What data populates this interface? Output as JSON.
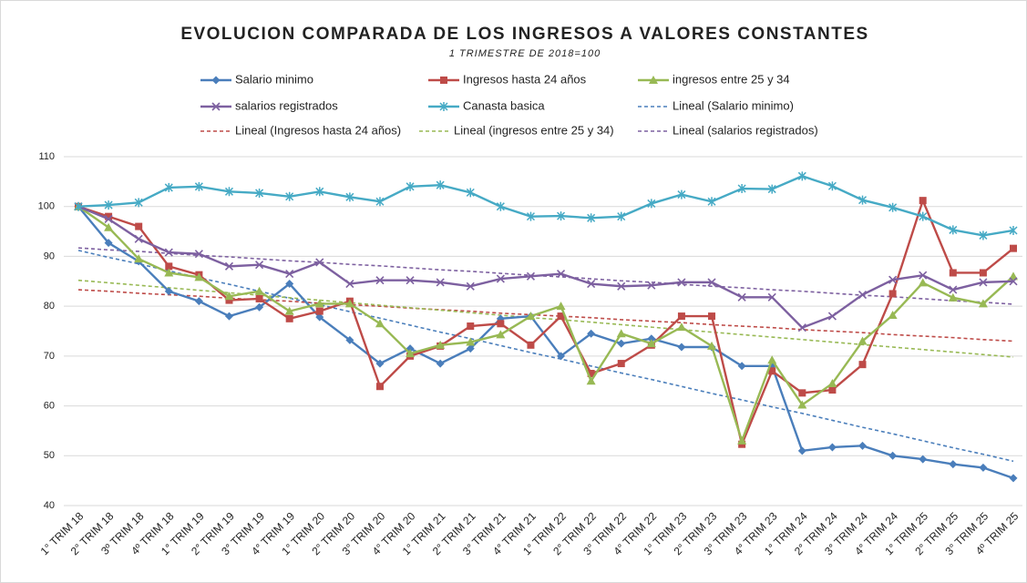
{
  "chart_data": {
    "type": "line",
    "title": "EVOLUCION COMPARADA DE LOS INGRESOS A VALORES CONSTANTES",
    "subtitle": "1 TRIMESTRE DE 2018=100",
    "categories": [
      "1° TRIM 18",
      "2° TRIM 18",
      "3º TRIM 18",
      "4º TRIM 18",
      "1° TRIM 19",
      "2° TRIM 19",
      "3° TRIM 19",
      "4° TRIM 19",
      "1° TRIM 20",
      "2° TRIM 20",
      "3° TRIM 20",
      "4° TRIM 20",
      "1° TRIM 21",
      "2° TRIM 21",
      "3° TRIM 21",
      "4° TRIM 21",
      "1° TRIM 22",
      "2° TRIM 22",
      "3° TRIM 22",
      "4° TRIM 22",
      "1° TRIM 23",
      "2° TRIM 23",
      "3° TRIM 23",
      "4° TRIM 23",
      "1° TRIM 24",
      "2° TRIM 24",
      "3° TRIM 24",
      "4° TRIM 24",
      "1° TRIM 25",
      "2° TRIM 25",
      "3° TRIM 25",
      "4º TRIM 25"
    ],
    "ylim": [
      40,
      110
    ],
    "yticks": [
      40,
      50,
      60,
      70,
      80,
      90,
      100,
      110
    ],
    "grid": true,
    "series": [
      {
        "name": "Salario minimo",
        "color": "#4a7ebb",
        "marker": "diamond",
        "values": [
          100,
          92.7,
          89,
          83,
          81,
          78,
          79.8,
          84.5,
          77.8,
          73.2,
          68.5,
          71.5,
          68.5,
          71.5,
          77.5,
          78,
          70,
          74.5,
          72.5,
          73.5,
          71.8,
          71.8,
          68,
          68,
          51,
          51.7,
          52,
          50,
          49.3,
          48.3,
          47.6,
          45.5
        ]
      },
      {
        "name": "Ingresos hasta 24 años",
        "color": "#be4b48",
        "marker": "square",
        "values": [
          100,
          98,
          96,
          88,
          86.3,
          81.2,
          81.5,
          77.5,
          79,
          81,
          63.9,
          70,
          72,
          76,
          76.5,
          72.2,
          78,
          66.5,
          68.5,
          72.2,
          78,
          78,
          52.3,
          67,
          62.6,
          63.2,
          68.3,
          82.5,
          101.2,
          86.7,
          86.7,
          91.6
        ]
      },
      {
        "name": "ingresos entre 25 y 34",
        "color": "#98b954",
        "marker": "triangle",
        "values": [
          100,
          95.8,
          89.5,
          86.7,
          85.8,
          82,
          83,
          79,
          80.5,
          80.5,
          76.5,
          70.5,
          72.2,
          72.8,
          74.3,
          78,
          80,
          65,
          74.5,
          72.5,
          75.8,
          72,
          53,
          69.2,
          60.2,
          64.5,
          73,
          78.2,
          84.7,
          81.7,
          80.5,
          86
        ]
      },
      {
        "name": "salarios registrados",
        "color": "#7d60a0",
        "marker": "x",
        "values": [
          100,
          97.5,
          93.5,
          90.8,
          90.5,
          88,
          88.3,
          86.5,
          88.8,
          84.5,
          85.2,
          85.2,
          84.8,
          84,
          85.5,
          86,
          86.5,
          84.5,
          84,
          84.2,
          84.8,
          84.8,
          81.8,
          81.8,
          75.7,
          78,
          82.3,
          85.3,
          86.2,
          83.3,
          84.8,
          85
        ]
      },
      {
        "name": "Canasta basica",
        "color": "#46aac5",
        "marker": "star",
        "values": [
          100,
          100.3,
          100.8,
          103.8,
          104,
          103,
          102.7,
          102,
          103,
          101.9,
          101,
          104,
          104.3,
          102.8,
          100,
          98,
          98.1,
          97.7,
          98,
          100.6,
          102.4,
          101,
          103.6,
          103.5,
          106.1,
          104.1,
          101.3,
          99.8,
          98,
          95.3,
          94.2,
          95.2
        ]
      },
      {
        "name": "Lineal (Salario minimo)",
        "color": "#4a7ebb",
        "dashed": true,
        "values": [
          91.2,
          89.8,
          88.5,
          87.1,
          85.7,
          84.4,
          83.0,
          81.6,
          80.3,
          78.9,
          77.6,
          76.2,
          74.8,
          73.5,
          72.1,
          70.7,
          69.4,
          68.0,
          66.6,
          65.3,
          63.9,
          62.5,
          61.2,
          59.8,
          58.5,
          57.1,
          55.7,
          54.4,
          53.0,
          51.6,
          50.3,
          48.9
        ]
      },
      {
        "name": "Lineal (Ingresos hasta 24 años)",
        "color": "#be4b48",
        "dashed": true,
        "values": [
          83.3,
          83.0,
          82.6,
          82.3,
          82.0,
          81.6,
          81.3,
          81.0,
          80.6,
          80.3,
          80.0,
          79.6,
          79.3,
          79.0,
          78.6,
          78.3,
          78.0,
          77.7,
          77.3,
          77.0,
          76.7,
          76.3,
          76.0,
          75.7,
          75.3,
          75.0,
          74.7,
          74.3,
          74.0,
          73.7,
          73.3,
          73.0
        ]
      },
      {
        "name": "Lineal (ingresos entre 25 y 34)",
        "color": "#98b954",
        "dashed": true,
        "values": [
          85.2,
          84.7,
          84.2,
          83.7,
          83.2,
          82.7,
          82.2,
          81.7,
          81.2,
          80.7,
          80.2,
          79.7,
          79.2,
          78.7,
          78.2,
          77.7,
          77.3,
          76.8,
          76.3,
          75.8,
          75.3,
          74.8,
          74.3,
          73.8,
          73.3,
          72.8,
          72.3,
          71.8,
          71.3,
          70.8,
          70.3,
          69.8
        ]
      },
      {
        "name": "Lineal (salarios registrados)",
        "color": "#7d60a0",
        "dashed": true,
        "values": [
          91.7,
          91.3,
          91.0,
          90.6,
          90.2,
          89.9,
          89.5,
          89.1,
          88.8,
          88.4,
          88.1,
          87.7,
          87.3,
          87.0,
          86.6,
          86.2,
          85.9,
          85.5,
          85.1,
          84.8,
          84.4,
          84.0,
          83.7,
          83.3,
          83.0,
          82.6,
          82.2,
          81.9,
          81.5,
          81.1,
          80.8,
          80.4
        ]
      }
    ]
  }
}
